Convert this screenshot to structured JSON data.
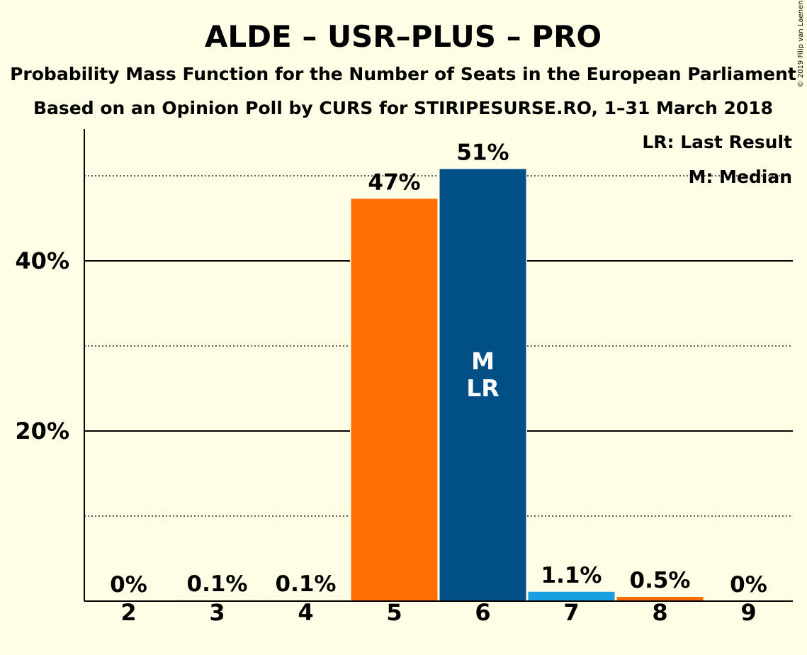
{
  "chart_data": {
    "type": "bar",
    "title": "ALDE – USR–PLUS – PRO",
    "subtitle1": "Probability Mass Function for the Number of Seats in the European Parliament",
    "subtitle2": "Based on an Opinion Poll by CURS for STIRIPESURSE.RO, 1–31 March 2018",
    "categories": [
      "2",
      "3",
      "4",
      "5",
      "6",
      "7",
      "8",
      "9"
    ],
    "values": [
      0,
      0.1,
      0.1,
      47.3,
      50.8,
      1.1,
      0.5,
      0
    ],
    "value_labels": [
      "0%",
      "0.1%",
      "0.1%",
      "47%",
      "51%",
      "1.1%",
      "0.5%",
      "0%"
    ],
    "bar_colors": [
      "#FF6E00",
      "#FF6E00",
      "#FF6E00",
      "#FF6E00",
      "#005087",
      "#1AA0E0",
      "#FF6E00",
      "#FF6E00"
    ],
    "ylim": [
      0,
      55
    ],
    "yticks": [
      20,
      40
    ],
    "ytick_labels": [
      "20%",
      "40%"
    ],
    "solid_gridlines": [
      20,
      40
    ],
    "dotted_gridlines": [
      10,
      30,
      50
    ],
    "median_index": 4,
    "last_result_index": 4,
    "median_marker": "M",
    "last_result_marker": "LR",
    "legend": {
      "last_result": "LR: Last Result",
      "median": "M: Median",
      "position": "top-right"
    },
    "copyright": "© 2019 Filip van Laenen"
  }
}
